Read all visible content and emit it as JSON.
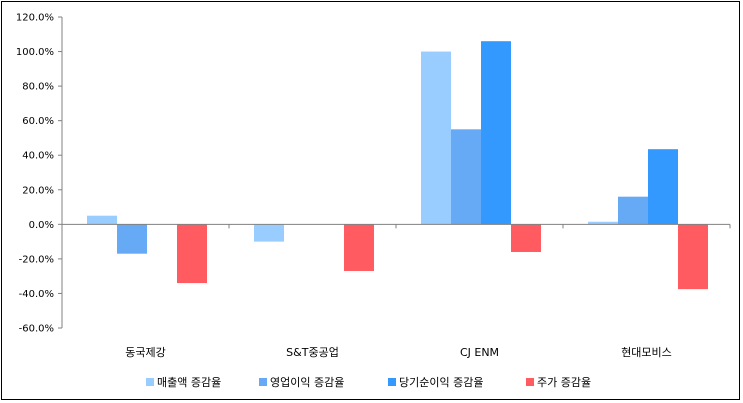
{
  "chart_data": {
    "type": "bar",
    "categories": [
      "동국제강",
      "S&T중공업",
      "CJ ENM",
      "현대모비스"
    ],
    "series": [
      {
        "name": "매출액 증감율",
        "color": "#99CCFF",
        "values": [
          5.0,
          -10.0,
          100.0,
          1.5
        ]
      },
      {
        "name": "영업이익 증감율",
        "color": "#66AAF5",
        "values": [
          -17.0,
          null,
          55.0,
          16.0
        ]
      },
      {
        "name": "당기순이익 증감율",
        "color": "#3399FF",
        "values": [
          null,
          null,
          106.0,
          43.5
        ]
      },
      {
        "name": "주가 증감율",
        "color": "#FF5B61",
        "values": [
          -34.0,
          -27.0,
          -16.0,
          -37.5
        ]
      }
    ],
    "y_ticks": [
      "120.0%",
      "100.0%",
      "80.0%",
      "60.0%",
      "40.0%",
      "20.0%",
      "0.0%",
      "-20.0%",
      "-40.0%",
      "-60.0%"
    ],
    "ylim": [
      -60,
      120
    ],
    "grid": false,
    "legend_position": "bottom",
    "title": "",
    "xlabel": "",
    "ylabel": ""
  }
}
